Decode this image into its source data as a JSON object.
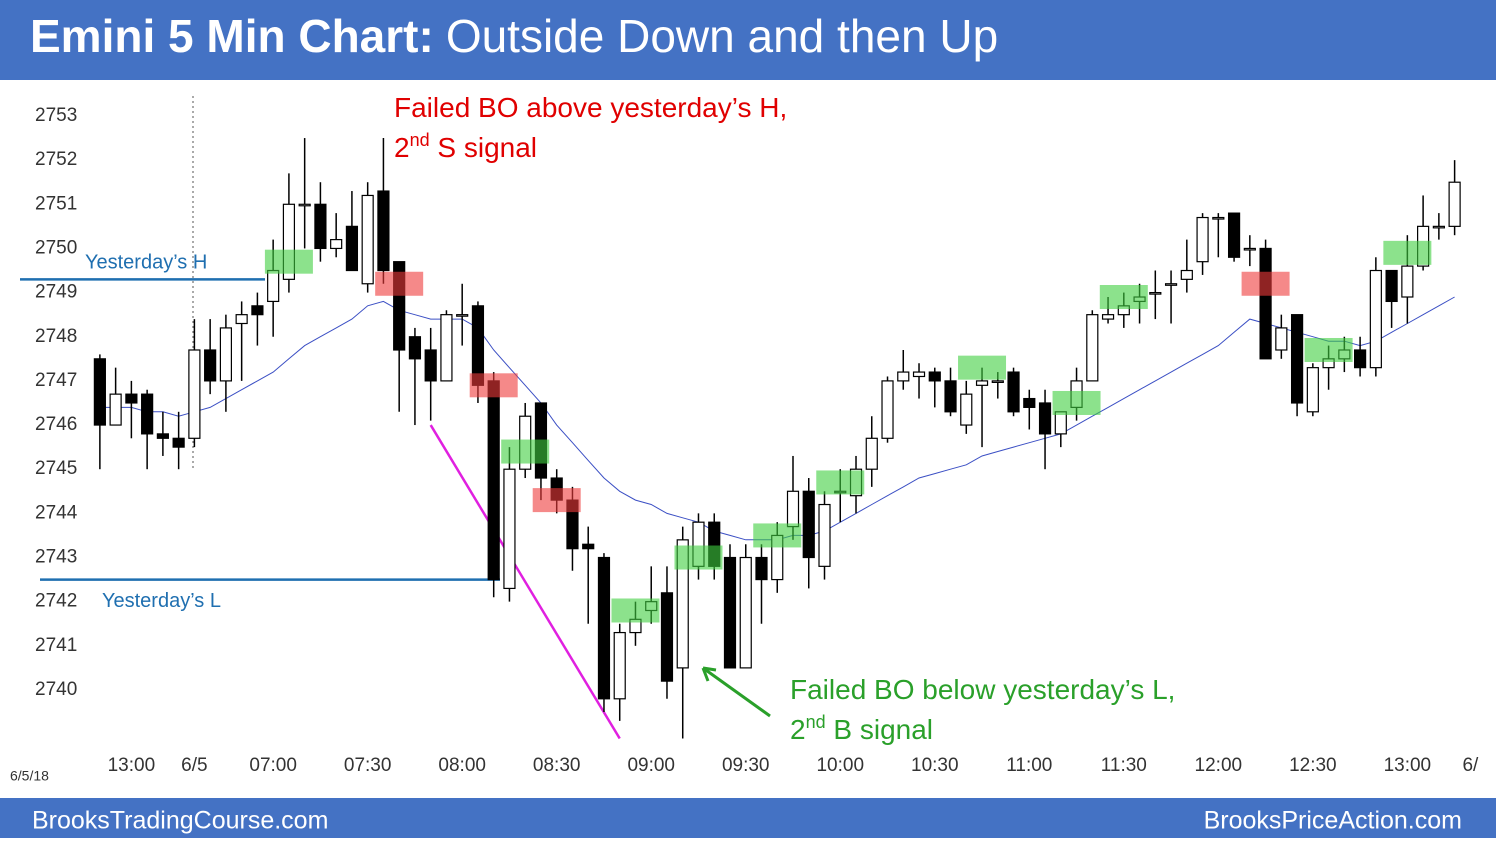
{
  "header": {
    "title_lead": "Emini 5 Min Chart:",
    "title": "Outside Down and then Up"
  },
  "footer": {
    "left": "BrooksTradingCourse.com",
    "right": "BrooksPriceAction.com"
  },
  "chart_data": {
    "type": "candlestick",
    "date_label": "6/5/18",
    "ylim": [
      2738.5,
      2753.5
    ],
    "yticks": [
      2740,
      2741,
      2742,
      2743,
      2744,
      2745,
      2746,
      2747,
      2748,
      2749,
      2750,
      2751,
      2752,
      2753
    ],
    "xlim": [
      -0.5,
      88.5
    ],
    "xticks": [
      {
        "value": 2,
        "label": "13:00"
      },
      {
        "value": 6,
        "label": "6/5"
      },
      {
        "value": 11,
        "label": "07:00"
      },
      {
        "value": 17,
        "label": "07:30"
      },
      {
        "value": 23,
        "label": "08:00"
      },
      {
        "value": 29,
        "label": "08:30"
      },
      {
        "value": 35,
        "label": "09:00"
      },
      {
        "value": 41,
        "label": "09:30"
      },
      {
        "value": 47,
        "label": "10:00"
      },
      {
        "value": 53,
        "label": "10:30"
      },
      {
        "value": 59,
        "label": "11:00"
      },
      {
        "value": 65,
        "label": "11:30"
      },
      {
        "value": 71,
        "label": "12:00"
      },
      {
        "value": 77,
        "label": "12:30"
      },
      {
        "value": 83,
        "label": "13:00"
      },
      {
        "value": 87,
        "label": "6/"
      }
    ],
    "grid": false,
    "up_color": "#ffffff",
    "down_color": "#000000",
    "open": [
      2747.5,
      2746,
      2746.7,
      2746.7,
      2745.8,
      2745.7,
      2745.7,
      2747.7,
      2747,
      2748.3,
      2748.7,
      2748.8,
      2749.3,
      2751,
      2751,
      2750,
      2750.5,
      2749.2,
      2751.3,
      2749.7,
      2748,
      2747.7,
      2747,
      2748.5,
      2748.7,
      2747,
      2742.3,
      2745,
      2746.5,
      2744.8,
      2744.3,
      2743.3,
      2743,
      2739.8,
      2741.3,
      2741.8,
      2742.2,
      2740.5,
      2742.8,
      2743.8,
      2743,
      2740.5,
      2743,
      2742.5,
      2743.7,
      2744.5,
      2742.8,
      2744.5,
      2744.4,
      2745,
      2745.7,
      2747,
      2747.1,
      2747.2,
      2747,
      2746,
      2746.9,
      2747,
      2747.2,
      2746.6,
      2746.5,
      2745.8,
      2746.4,
      2747,
      2748.4,
      2748.5,
      2748.8,
      2749,
      2749.2,
      2749.3,
      2749.7,
      2750.7,
      2750.8,
      2750,
      2750,
      2747.7,
      2748.5,
      2746.3,
      2747.3,
      2747.5,
      2747.7,
      2747.3,
      2749.5,
      2748.9,
      2749.6,
      2750.5,
      2750.5
    ],
    "high": [
      2747.6,
      2747.3,
      2747,
      2746.8,
      2746.3,
      2746.3,
      2748.4,
      2748.4,
      2748.5,
      2748.8,
      2749,
      2750.2,
      2751.7,
      2752.5,
      2751.5,
      2750.8,
      2751.3,
      2751.5,
      2752.5,
      2749.7,
      2748.2,
      2748.2,
      2748.6,
      2749.2,
      2748.8,
      2747.2,
      2745.5,
      2746.5,
      2746.5,
      2745,
      2744.6,
      2743.7,
      2743.1,
      2741.5,
      2742,
      2742.8,
      2742.8,
      2743.7,
      2744,
      2744,
      2743.3,
      2743.3,
      2743.3,
      2743.8,
      2745.3,
      2744.8,
      2744.5,
      2745,
      2745.3,
      2746.2,
      2747.1,
      2747.7,
      2747.4,
      2747.3,
      2747.3,
      2747,
      2747.3,
      2747.2,
      2747.3,
      2746.8,
      2746.8,
      2746.3,
      2747.3,
      2748.6,
      2748.9,
      2749,
      2749.2,
      2749.5,
      2749.5,
      2750.2,
      2750.8,
      2750.8,
      2750.8,
      2750.3,
      2750.2,
      2748.5,
      2748.5,
      2747.4,
      2747.8,
      2748,
      2748,
      2749.8,
      2749.5,
      2750.3,
      2751.2,
      2750.8,
      2752
    ],
    "low": [
      2745,
      2746,
      2745.7,
      2745,
      2745.3,
      2745,
      2745.5,
      2746.7,
      2746.3,
      2747,
      2747.8,
      2748,
      2749,
      2750,
      2749.7,
      2749.8,
      2749.5,
      2749,
      2749.2,
      2746.3,
      2746,
      2746.1,
      2747,
      2747.8,
      2746.5,
      2742.1,
      2742,
      2744.8,
      2744.3,
      2744,
      2742.7,
      2741.5,
      2739.5,
      2739.3,
      2741,
      2741.5,
      2739.8,
      2738.9,
      2742.5,
      2742.5,
      2740.5,
      2740.5,
      2741.5,
      2742.2,
      2743.4,
      2742.3,
      2742.5,
      2743.8,
      2744,
      2744.6,
      2745.6,
      2746.8,
      2746.6,
      2746.4,
      2746.2,
      2745.8,
      2745.5,
      2746.6,
      2746.2,
      2745.9,
      2745,
      2745.5,
      2746.1,
      2747,
      2748.3,
      2748.2,
      2748.3,
      2748.4,
      2748.3,
      2749,
      2749.4,
      2749.8,
      2749.7,
      2749.6,
      2747.5,
      2747.5,
      2746.2,
      2746.2,
      2746.8,
      2747.2,
      2747.1,
      2747.1,
      2748.2,
      2748.3,
      2749.5,
      2750.2,
      2750.3
    ],
    "close": [
      2746,
      2746.7,
      2746.5,
      2745.8,
      2745.7,
      2745.5,
      2747.7,
      2747,
      2748.2,
      2748.5,
      2748.5,
      2749.5,
      2751,
      2751,
      2750,
      2750.2,
      2749.5,
      2751.2,
      2749.5,
      2747.7,
      2747.5,
      2747,
      2748.5,
      2748.5,
      2746.9,
      2742.5,
      2745,
      2746.2,
      2744.8,
      2744.3,
      2743.2,
      2743.2,
      2739.8,
      2741.3,
      2741.6,
      2742,
      2740.2,
      2743.4,
      2743.8,
      2742.8,
      2740.5,
      2743,
      2742.5,
      2743.5,
      2744.5,
      2743,
      2744.2,
      2744.5,
      2745,
      2745.7,
      2747,
      2747.2,
      2747.2,
      2747,
      2746.3,
      2746.7,
      2747,
      2747,
      2746.3,
      2746.4,
      2745.8,
      2746.3,
      2747,
      2748.5,
      2748.5,
      2748.7,
      2748.9,
      2749,
      2749.2,
      2749.5,
      2750.7,
      2750.7,
      2749.8,
      2750,
      2747.5,
      2748.2,
      2746.5,
      2747.3,
      2747.5,
      2747.7,
      2747.3,
      2749.5,
      2748.8,
      2749.6,
      2750.5,
      2750.5,
      2751.5
    ],
    "moving_average": {
      "color": "#3b4fc4",
      "values": [
        2746.4,
        2746.4,
        2746.4,
        2746.3,
        2746.3,
        2746.2,
        2746.3,
        2746.4,
        2746.6,
        2746.8,
        2747.0,
        2747.2,
        2747.5,
        2747.8,
        2748.0,
        2748.2,
        2748.4,
        2748.7,
        2748.8,
        2748.6,
        2748.5,
        2748.4,
        2748.4,
        2748.4,
        2748.2,
        2747.7,
        2747.3,
        2746.9,
        2746.5,
        2746.0,
        2745.6,
        2745.2,
        2744.8,
        2744.5,
        2744.3,
        2744.2,
        2744.0,
        2743.9,
        2743.8,
        2743.6,
        2743.5,
        2743.4,
        2743.4,
        2743.4,
        2743.5,
        2743.5,
        2743.6,
        2743.8,
        2744.0,
        2744.2,
        2744.4,
        2744.6,
        2744.8,
        2744.9,
        2745.0,
        2745.1,
        2745.3,
        2745.4,
        2745.5,
        2745.6,
        2745.7,
        2745.8,
        2746.0,
        2746.2,
        2746.4,
        2746.6,
        2746.8,
        2747.0,
        2747.2,
        2747.4,
        2747.6,
        2747.8,
        2748.1,
        2748.4,
        2748.3,
        2748.2,
        2748.1,
        2748.0,
        2747.9,
        2747.9,
        2747.8,
        2747.9,
        2748.1,
        2748.3,
        2748.5,
        2748.7,
        2748.9
      ]
    },
    "signal_colors": {
      "buy": "#3fcf3f",
      "sell": "#ee3b3b"
    },
    "signals": {
      "index": [
        12,
        19,
        25,
        27,
        29,
        34,
        38,
        43,
        47,
        56,
        62,
        65,
        74,
        78,
        83
      ],
      "price": [
        2749.7,
        2749.2,
        2746.9,
        2745.4,
        2744.3,
        2741.8,
        2743.0,
        2743.5,
        2744.7,
        2747.3,
        2746.5,
        2748.9,
        2749.2,
        2747.7,
        2749.9
      ],
      "kind": [
        "buy",
        "sell",
        "sell",
        "buy",
        "sell",
        "buy",
        "buy",
        "buy",
        "buy",
        "buy",
        "buy",
        "buy",
        "sell",
        "buy",
        "buy"
      ]
    },
    "levels": [
      {
        "label": "Yesterday’s H",
        "value": 2749.3,
        "color": "#1f6fb0"
      },
      {
        "label": "Yesterday’s L",
        "value": 2742.5,
        "color": "#1f6fb0"
      }
    ],
    "trendline": {
      "color": "#e020e0",
      "index": [
        21,
        33
      ],
      "price": [
        2746.0,
        2738.9
      ]
    },
    "annotations": [
      {
        "color": "#e00000",
        "lines": [
          {
            "text": "Failed BO above yesterday’s H,"
          },
          {
            "text": "2",
            "sup": "nd",
            "rest": " S signal"
          }
        ]
      },
      {
        "color": "#2aa02a",
        "lines": [
          {
            "text": "Failed BO below yesterday’s L,"
          },
          {
            "text": "2",
            "sup": "nd",
            "rest": " B signal"
          }
        ]
      }
    ]
  }
}
